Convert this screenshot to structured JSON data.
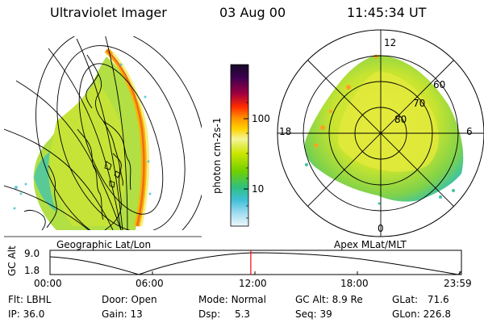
{
  "header": {
    "instrument": "Ultraviolet Imager",
    "date": "03 Aug 00",
    "time": "11:45:34 UT"
  },
  "geo_panel": {
    "label": "Geographic Lat/Lon"
  },
  "apex_panel": {
    "label": "Apex MLat/MLT",
    "mlt_labels": {
      "top": "12",
      "left": "18",
      "right": "6",
      "bottom": "0"
    },
    "lat_labels": [
      "60",
      "70",
      "80"
    ]
  },
  "colorbar": {
    "unit_label": "photon cm-2s-1",
    "ticks": [
      "100",
      "10"
    ],
    "colors": [
      "#1a0a2e",
      "#3c0050",
      "#7a0040",
      "#c4003a",
      "#ff2a00",
      "#ff8c00",
      "#ffd000",
      "#f5f590",
      "#cde600",
      "#7fd400",
      "#30c080",
      "#40c0d0",
      "#90d8f0",
      "#e8f4fa"
    ]
  },
  "timeline": {
    "y_axis_label": "GC Alt",
    "y_ticks": [
      "9.0",
      "1.8"
    ],
    "x_ticks": [
      "00:00",
      "06:00",
      "12:00",
      "18:00",
      "23:59"
    ],
    "marker_hours": 11.76
  },
  "status": {
    "filter": {
      "label": "Flt:",
      "value": "LBHL"
    },
    "ip": {
      "label": "IP:",
      "value": "36.0"
    },
    "door": {
      "label": "Door:",
      "value": "Open"
    },
    "gain": {
      "label": "Gain:",
      "value": "13"
    },
    "mode": {
      "label": "Mode:",
      "value": "Normal"
    },
    "dsp": {
      "label": "Dsp:",
      "value": "5.3"
    },
    "gc_alt": {
      "label": "GC Alt:",
      "value": "8.9 Re"
    },
    "seq": {
      "label": "Seq:",
      "value": "39"
    },
    "glat": {
      "label": "GLat:",
      "value": "71.6"
    },
    "glon": {
      "label": "GLon:",
      "value": "226.8"
    }
  }
}
